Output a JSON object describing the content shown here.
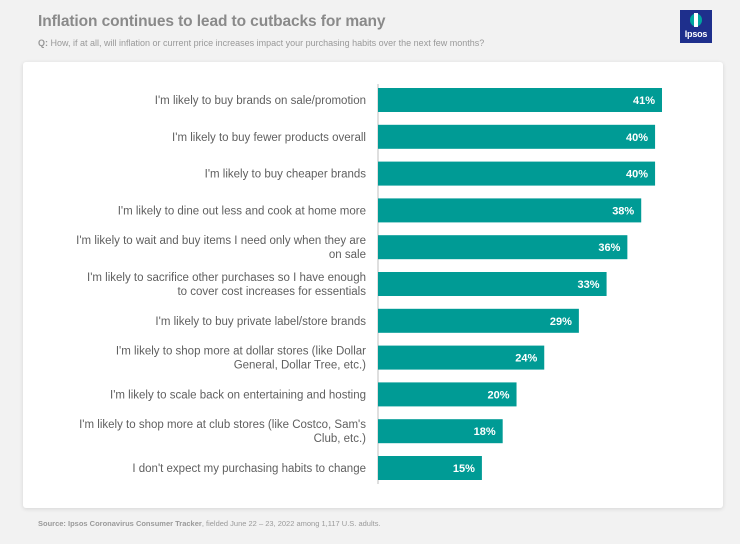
{
  "header": {
    "title": "Inflation continues to lead to cutbacks for many",
    "question_prefix": "Q:",
    "question_text": "How, if at all, will inflation or current price increases impact your purchasing habits over the next few months?"
  },
  "logo": {
    "text": "Ipsos",
    "color": "#1e2f8c",
    "accent": "#00a6a0"
  },
  "footer": {
    "source_label": "Source: Ipsos Coronavirus Consumer Tracker",
    "source_rest": ", fielded June 22 – 23, 2022 among 1,117 U.S. adults."
  },
  "chart_data": {
    "type": "bar",
    "orientation": "horizontal",
    "title": "",
    "xlabel": "",
    "ylabel": "",
    "bar_color": "#009b95",
    "value_suffix": "%",
    "xlim": [
      0,
      45
    ],
    "categories": [
      [
        "I'm likely to buy brands on sale/promotion"
      ],
      [
        "I'm likely to buy fewer products overall"
      ],
      [
        "I'm likely to buy cheaper brands"
      ],
      [
        "I'm likely to dine out less and cook at home more"
      ],
      [
        "I'm likely to wait and buy items I need only when they are",
        "on sale"
      ],
      [
        "I'm likely to sacrifice other purchases so I have enough",
        "to cover cost increases for essentials"
      ],
      [
        "I'm likely to buy private label/store brands"
      ],
      [
        "I'm likely to shop more at dollar stores (like Dollar",
        "General, Dollar Tree, etc.)"
      ],
      [
        "I'm likely to scale back on entertaining and hosting"
      ],
      [
        "I'm likely to shop more at club stores (like Costco, Sam's",
        "Club, etc.)"
      ],
      [
        "I don't expect my purchasing habits to change"
      ]
    ],
    "values": [
      41,
      40,
      40,
      38,
      36,
      33,
      29,
      24,
      20,
      18,
      15
    ],
    "data_labels": [
      "41%",
      "40%",
      "40%",
      "38%",
      "36%",
      "33%",
      "29%",
      "24%",
      "20%",
      "18%",
      "15%"
    ]
  }
}
